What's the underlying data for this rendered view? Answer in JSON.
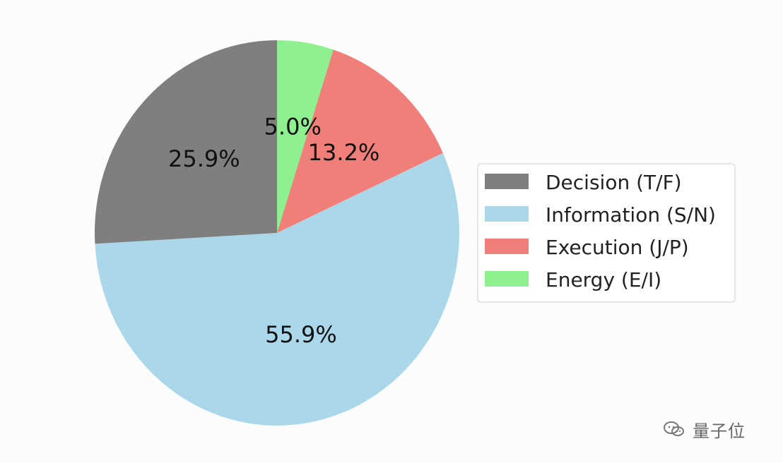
{
  "chart_data": {
    "type": "pie",
    "start_angle_deg": 0,
    "direction": "clockwise",
    "legend_position": "right",
    "categories": [
      "Decision (T/F)",
      "Information (S/N)",
      "Execution (J/P)",
      "Energy (E/I)"
    ],
    "values": [
      25.9,
      55.9,
      13.2,
      5.0
    ],
    "labels": [
      "25.9%",
      "55.9%",
      "13.2%",
      "5.0%"
    ],
    "colors": [
      "#7f7f7f",
      "#aad8ea",
      "#f17f79",
      "#8ff08f"
    ]
  },
  "legend": {
    "items": [
      {
        "label": "Decision (T/F)",
        "color": "#7f7f7f"
      },
      {
        "label": "Information (S/N)",
        "color": "#aad8ea"
      },
      {
        "label": "Execution (J/P)",
        "color": "#f17f79"
      },
      {
        "label": "Energy (E/I)",
        "color": "#8ff08f"
      }
    ]
  },
  "watermark": {
    "text": "量子位",
    "icon": "wechat-icon"
  }
}
